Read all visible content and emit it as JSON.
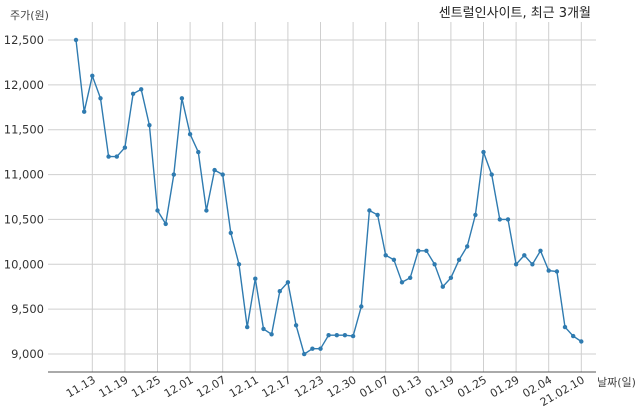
{
  "chart_data": {
    "type": "line",
    "title": "센트럴인사이트, 최근 3개월",
    "ylabel": "주가(원)",
    "xlabel": "날짜(일)",
    "ylim": [
      8800,
      12700
    ],
    "yticks": [
      9000,
      9500,
      10000,
      10500,
      11000,
      11500,
      12000,
      12500
    ],
    "ytick_labels": [
      "9,000",
      "9,500",
      "10,000",
      "10,500",
      "11,000",
      "11,500",
      "12,000",
      "12,500"
    ],
    "xtick_labels": [
      "11.13",
      "11.19",
      "11.25",
      "12.01",
      "12.07",
      "12.11",
      "12.17",
      "12.23",
      "12.30",
      "01.07",
      "01.13",
      "01.19",
      "01.25",
      "01.29",
      "02.04",
      "21.02.10"
    ],
    "xtick_positions": [
      2,
      6,
      10,
      14,
      18,
      22,
      26,
      30,
      34,
      38,
      42,
      46,
      50,
      54,
      58,
      62
    ],
    "grid": true,
    "line_color": "#2f7bb0",
    "series": [
      {
        "name": "",
        "values": [
          12500,
          11700,
          12100,
          11850,
          11200,
          11200,
          11300,
          11900,
          11950,
          11550,
          10600,
          10450,
          11000,
          11850,
          11450,
          11250,
          10600,
          11050,
          11000,
          10350,
          10000,
          9300,
          9840,
          9280,
          9220,
          9700,
          9800,
          9320,
          9000,
          9060,
          9060,
          9210,
          9210,
          9210,
          9200,
          9530,
          10600,
          10550,
          10100,
          10050,
          9800,
          9850,
          10150,
          10150,
          10000,
          9750,
          9850,
          10050,
          10200,
          10550,
          11250,
          11000,
          10500,
          10500,
          10000,
          10100,
          10000,
          10150,
          9930,
          9920,
          9300,
          9200,
          9140
        ]
      }
    ]
  }
}
